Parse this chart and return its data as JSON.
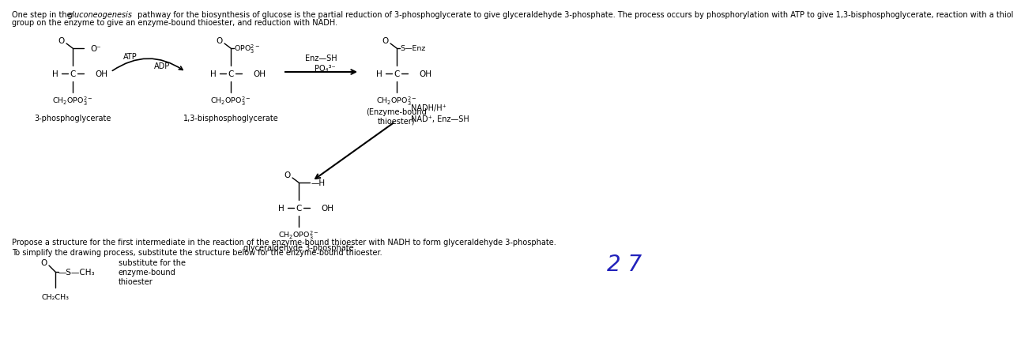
{
  "bg_color": "#ffffff",
  "text_color": "#000000",
  "number_color": "#2222bb",
  "header_line1_pre": "One step in the ",
  "header_line1_italic": "gluconeogenesis",
  "header_line1_post": " pathway for the biosynthesis of glucose is the partial reduction of 3-phosphoglycerate to give glyceraldehyde 3-phosphate. The process occurs by phosphorylation with ATP to give 1,3-bisphosphoglycerate, reaction with a thiol",
  "header_line2": "group on the enzyme to give an enzyme-bound thioester, and reduction with NADH.",
  "propose_text": "Propose a structure for the first intermediate in the reaction of the enzyme-bound thioester with NADH to form glyceraldehyde 3-phosphate.",
  "simplify_text": "To simplify the drawing process, substitute the structure below for the enzyme-bound thioester.",
  "page_number": "2 7",
  "label1": "3-phosphoglycerate",
  "label2": "1,3-bisphosphoglycerate",
  "label3a": "(Enzyme-bound",
  "label3b": "thioester)",
  "label4": "glyceraldehyde 3-phosphate",
  "atp_label": "ATP",
  "adp_label": "ADP",
  "enzsh_label": "Enz—SH",
  "po4_label": "PO₄³⁻",
  "nadh_label": "NADH/H⁺",
  "nad_label": "NAD⁺, Enz—SH",
  "sub_label1": "substitute for the",
  "sub_label2": "enzyme-bound",
  "sub_label3": "thioester",
  "fs_header": 7.0,
  "fs_mol": 7.5,
  "fs_sub": 6.8,
  "fs_label": 7.0,
  "fs_page": 20
}
